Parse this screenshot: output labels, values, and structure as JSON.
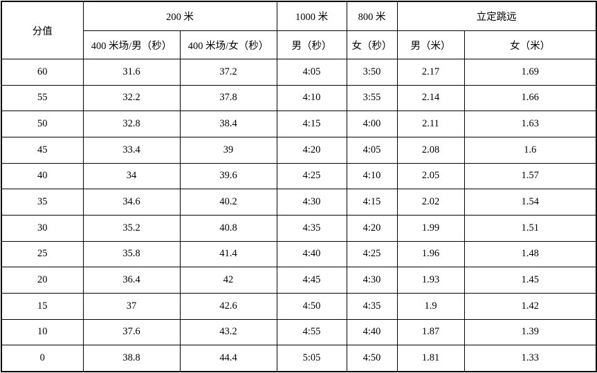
{
  "colors": {
    "border": "#000000",
    "background": "#ffffff",
    "text": "#000000"
  },
  "table": {
    "header": {
      "score": "分值",
      "group_200m": "200 米",
      "group_1000m": "1000 米",
      "group_800m": "800 米",
      "group_standing_jump": "立定跳远",
      "sub_400m_male": "400 米场/男（秒）",
      "sub_400m_female": "400 米场/女（秒）",
      "sub_1000m_male": "男（秒）",
      "sub_800m_female": "女（秒）",
      "sub_jump_male": "男（米）",
      "sub_jump_female": "女（米）"
    },
    "rows": [
      [
        "60",
        "31.6",
        "37.2",
        "4:05",
        "3:50",
        "2.17",
        "1.69"
      ],
      [
        "55",
        "32.2",
        "37.8",
        "4:10",
        "3:55",
        "2.14",
        "1.66"
      ],
      [
        "50",
        "32.8",
        "38.4",
        "4:15",
        "4:00",
        "2.11",
        "1.63"
      ],
      [
        "45",
        "33.4",
        "39",
        "4:20",
        "4:05",
        "2.08",
        "1.6"
      ],
      [
        "40",
        "34",
        "39.6",
        "4:25",
        "4:10",
        "2.05",
        "1.57"
      ],
      [
        "35",
        "34.6",
        "40.2",
        "4:30",
        "4:15",
        "2.02",
        "1.54"
      ],
      [
        "30",
        "35.2",
        "40.8",
        "4:35",
        "4:20",
        "1.99",
        "1.51"
      ],
      [
        "25",
        "35.8",
        "41.4",
        "4:40",
        "4:25",
        "1.96",
        "1.48"
      ],
      [
        "20",
        "36.4",
        "42",
        "4:45",
        "4:30",
        "1.93",
        "1.45"
      ],
      [
        "15",
        "37",
        "42.6",
        "4:50",
        "4:35",
        "1.9",
        "1.42"
      ],
      [
        "10",
        "37.6",
        "43.2",
        "4:55",
        "4:40",
        "1.87",
        "1.39"
      ],
      [
        "0",
        "38.8",
        "44.4",
        "5:05",
        "4:50",
        "1.81",
        "1.33"
      ]
    ]
  }
}
